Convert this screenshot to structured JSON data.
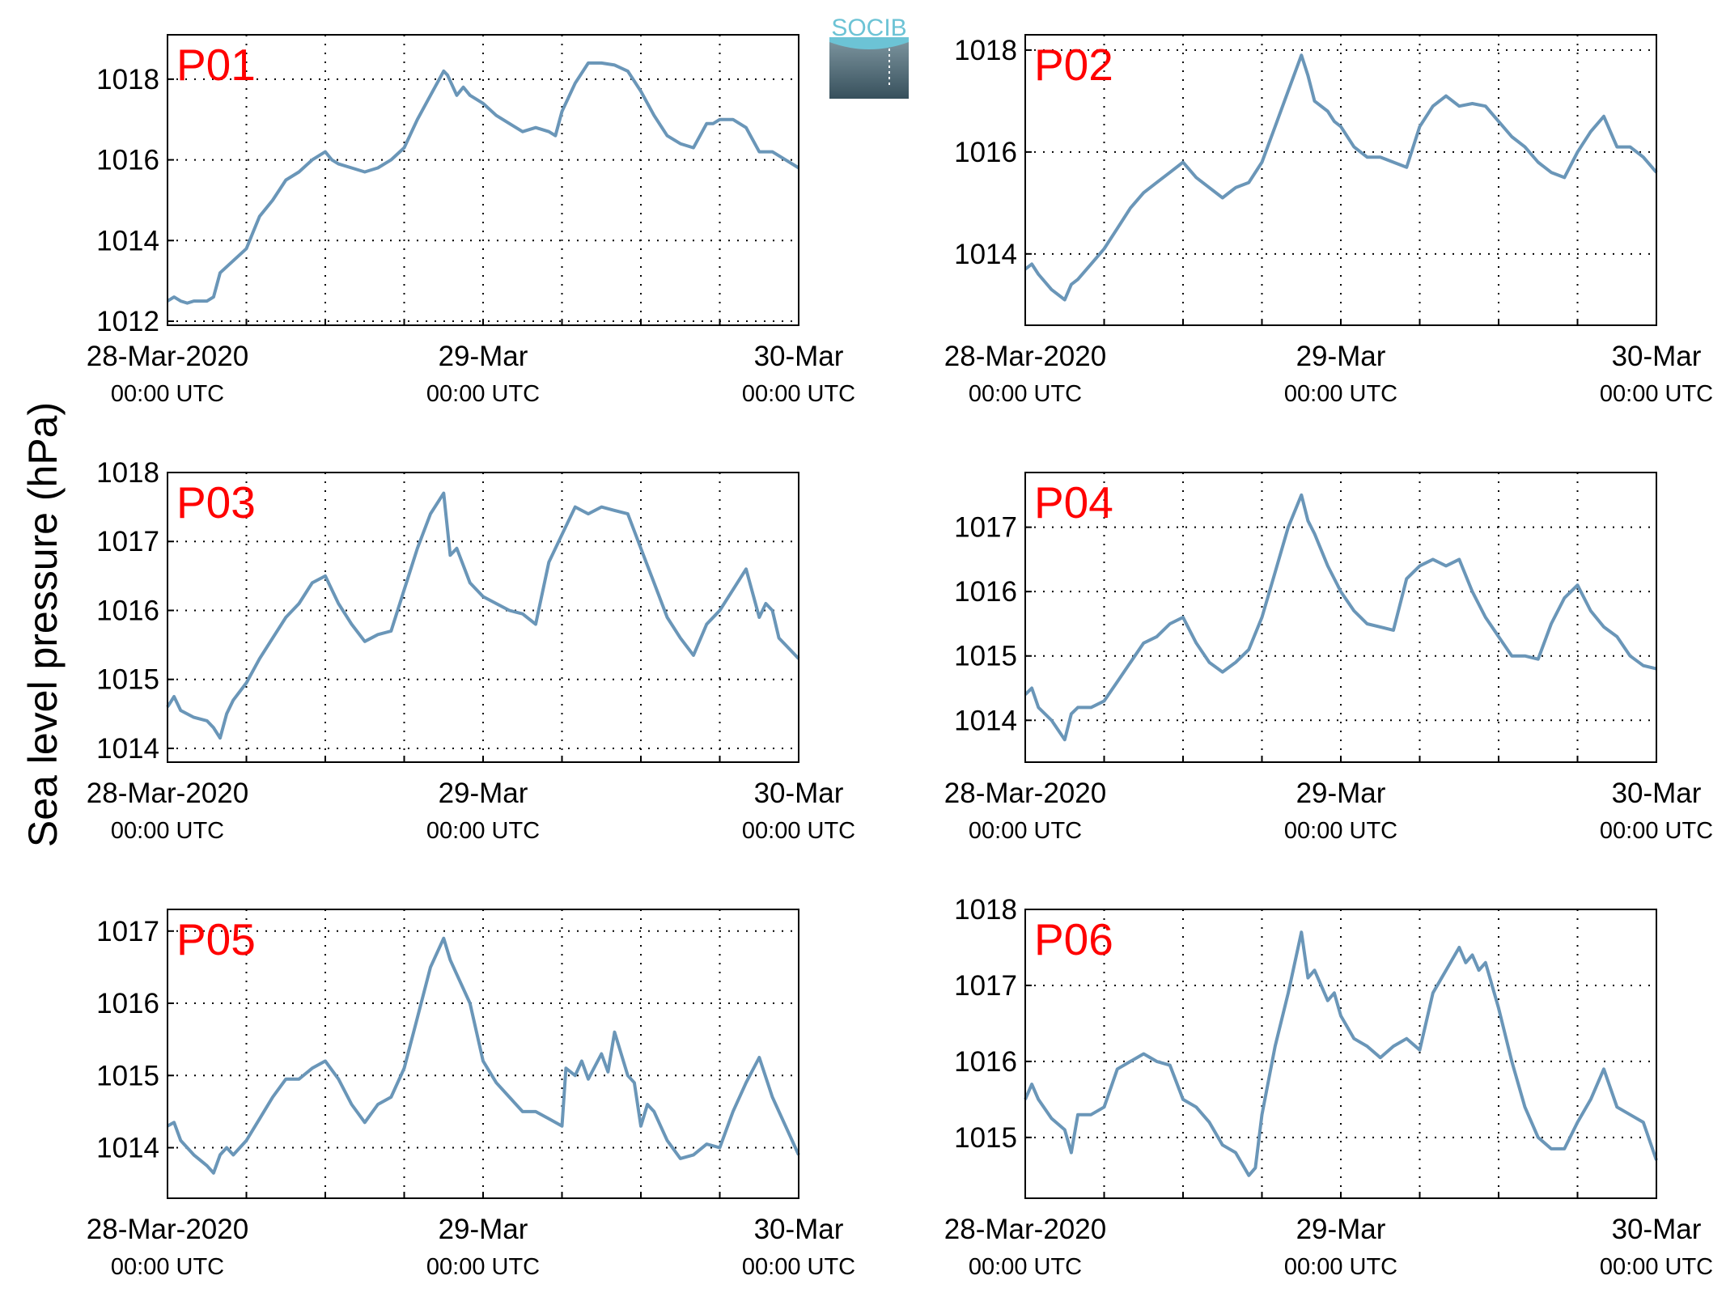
{
  "ylabel": "Sea level pressure (hPa)",
  "logo": {
    "text": "SOCIB"
  },
  "colors": {
    "line": "#6a96b8",
    "label": "#ff0000",
    "axis": "#000000",
    "grid": "#000000",
    "logo_top": "#6cc3d5",
    "logo_bottom": "#37505c"
  },
  "x_ticks": [
    {
      "main": "28-Mar-2020",
      "sub": "00:00 UTC"
    },
    {
      "main": "29-Mar",
      "sub": "00:00 UTC"
    },
    {
      "main": "30-Mar",
      "sub": "00:00 UTC"
    }
  ],
  "chart_data": [
    {
      "type": "line",
      "title": "P01",
      "xlim_hours": [
        0,
        48
      ],
      "ylim": [
        1011.9,
        1019.1
      ],
      "yticks": [
        "1012",
        "1014",
        "1016",
        "1018"
      ],
      "ytick_values": [
        1012,
        1014,
        1016,
        1018
      ],
      "x_grid_hours": [
        6,
        12,
        18,
        24,
        30,
        36,
        42
      ],
      "series": [
        {
          "x": [
            0,
            0.5,
            1,
            1.5,
            2,
            3,
            3.5,
            4,
            5,
            6,
            6.5,
            7,
            8,
            9,
            10,
            11,
            12,
            12.5,
            13,
            14,
            15,
            16,
            17,
            18,
            19,
            20,
            21,
            21.3,
            22,
            22.5,
            23,
            23.5,
            24,
            25,
            26,
            27,
            28,
            29,
            29.5,
            30,
            31,
            32,
            33,
            34,
            35,
            36,
            37,
            38,
            39,
            40,
            41,
            41.5,
            42,
            43,
            44,
            45,
            45.5,
            46,
            47,
            48
          ],
          "y": [
            1012.5,
            1012.6,
            1012.5,
            1012.45,
            1012.5,
            1012.5,
            1012.6,
            1013.2,
            1013.5,
            1013.8,
            1014.2,
            1014.6,
            1015.0,
            1015.5,
            1015.7,
            1016.0,
            1016.2,
            1016.0,
            1015.9,
            1015.8,
            1015.7,
            1015.8,
            1016.0,
            1016.3,
            1017.0,
            1017.6,
            1018.2,
            1018.1,
            1017.6,
            1017.8,
            1017.6,
            1017.5,
            1017.4,
            1017.1,
            1016.9,
            1016.7,
            1016.8,
            1016.7,
            1016.6,
            1017.2,
            1017.9,
            1018.4,
            1018.4,
            1018.35,
            1018.2,
            1017.7,
            1017.1,
            1016.6,
            1016.4,
            1016.3,
            1016.9,
            1016.9,
            1017.0,
            1017.0,
            1016.8,
            1016.2,
            1016.2,
            1016.2,
            1016.0,
            1015.8
          ]
        }
      ]
    },
    {
      "type": "line",
      "title": "P02",
      "xlim_hours": [
        0,
        48
      ],
      "ylim": [
        1012.6,
        1018.3
      ],
      "yticks": [
        "1014",
        "1016",
        "1018"
      ],
      "ytick_values": [
        1014,
        1016,
        1018
      ],
      "x_grid_hours": [
        6,
        12,
        18,
        24,
        30,
        36,
        42
      ],
      "series": [
        {
          "x": [
            0,
            0.5,
            1,
            2,
            3,
            3.5,
            4,
            5,
            6,
            7,
            8,
            9,
            10,
            11,
            12,
            13,
            14,
            15,
            16,
            17,
            18,
            19,
            20,
            21,
            21.5,
            22,
            23,
            23.5,
            24,
            25,
            26,
            27,
            28,
            29,
            30,
            31,
            32,
            33,
            34,
            35,
            36,
            37,
            38,
            39,
            40,
            41,
            42,
            43,
            44,
            45,
            46,
            47,
            48
          ],
          "y": [
            1013.7,
            1013.8,
            1013.6,
            1013.3,
            1013.1,
            1013.4,
            1013.5,
            1013.8,
            1014.1,
            1014.5,
            1014.9,
            1015.2,
            1015.4,
            1015.6,
            1015.8,
            1015.5,
            1015.3,
            1015.1,
            1015.3,
            1015.4,
            1015.8,
            1016.5,
            1017.2,
            1017.9,
            1017.5,
            1017.0,
            1016.8,
            1016.6,
            1016.5,
            1016.1,
            1015.9,
            1015.9,
            1015.8,
            1015.7,
            1016.5,
            1016.9,
            1017.1,
            1016.9,
            1016.95,
            1016.9,
            1016.6,
            1016.3,
            1016.1,
            1015.8,
            1015.6,
            1015.5,
            1016.0,
            1016.4,
            1016.7,
            1016.1,
            1016.1,
            1015.9,
            1015.6
          ]
        }
      ]
    },
    {
      "type": "line",
      "title": "P03",
      "xlim_hours": [
        0,
        48
      ],
      "ylim": [
        1013.8,
        1018.0
      ],
      "yticks": [
        "1014",
        "1015",
        "1016",
        "1017",
        "1018"
      ],
      "ytick_values": [
        1014,
        1015,
        1016,
        1017,
        1018
      ],
      "x_grid_hours": [
        6,
        12,
        18,
        24,
        30,
        36,
        42
      ],
      "series": [
        {
          "x": [
            0,
            0.5,
            1,
            2,
            3,
            3.5,
            4,
            4.5,
            5,
            6,
            7,
            8,
            9,
            10,
            11,
            12,
            13,
            14,
            15,
            16,
            17,
            18,
            19,
            20,
            21,
            21.5,
            22,
            23,
            23.5,
            24,
            25,
            26,
            27,
            28,
            29,
            30,
            31,
            32,
            33,
            34,
            35,
            36,
            37,
            38,
            39,
            40,
            41,
            42,
            43,
            44,
            45,
            45.5,
            46,
            46.5,
            47,
            48
          ],
          "y": [
            1014.6,
            1014.75,
            1014.55,
            1014.45,
            1014.4,
            1014.3,
            1014.15,
            1014.5,
            1014.7,
            1014.95,
            1015.3,
            1015.6,
            1015.9,
            1016.1,
            1016.4,
            1016.5,
            1016.1,
            1015.8,
            1015.55,
            1015.65,
            1015.7,
            1016.3,
            1016.9,
            1017.4,
            1017.7,
            1016.8,
            1016.9,
            1016.4,
            1016.3,
            1016.2,
            1016.1,
            1016.0,
            1015.95,
            1015.8,
            1016.7,
            1017.1,
            1017.5,
            1017.4,
            1017.5,
            1017.45,
            1017.4,
            1016.9,
            1016.4,
            1015.9,
            1015.6,
            1015.35,
            1015.8,
            1016.0,
            1016.3,
            1016.6,
            1015.9,
            1016.1,
            1016.0,
            1015.6,
            1015.5,
            1015.3
          ]
        }
      ]
    },
    {
      "type": "line",
      "title": "P04",
      "xlim_hours": [
        0,
        48
      ],
      "ylim": [
        1013.35,
        1017.85
      ],
      "yticks": [
        "1014",
        "1015",
        "1016",
        "1017"
      ],
      "ytick_values": [
        1014,
        1015,
        1016,
        1017
      ],
      "x_grid_hours": [
        6,
        12,
        18,
        24,
        30,
        36,
        42
      ],
      "series": [
        {
          "x": [
            0,
            0.5,
            1,
            2,
            3,
            3.5,
            4,
            5,
            6,
            7,
            8,
            9,
            10,
            11,
            12,
            13,
            14,
            15,
            16,
            17,
            18,
            19,
            20,
            21,
            21.5,
            22,
            23,
            24,
            25,
            26,
            27,
            28,
            29,
            30,
            31,
            32,
            33,
            34,
            35,
            36,
            37,
            38,
            39,
            40,
            41,
            42,
            43,
            44,
            45,
            46,
            47,
            48
          ],
          "y": [
            1014.4,
            1014.5,
            1014.2,
            1014.0,
            1013.7,
            1014.1,
            1014.2,
            1014.2,
            1014.3,
            1014.6,
            1014.9,
            1015.2,
            1015.3,
            1015.5,
            1015.6,
            1015.2,
            1014.9,
            1014.75,
            1014.9,
            1015.1,
            1015.6,
            1016.3,
            1017.0,
            1017.5,
            1017.1,
            1016.9,
            1016.4,
            1016.0,
            1015.7,
            1015.5,
            1015.45,
            1015.4,
            1016.2,
            1016.4,
            1016.5,
            1016.4,
            1016.5,
            1016.0,
            1015.6,
            1015.3,
            1015.0,
            1015.0,
            1014.95,
            1015.5,
            1015.9,
            1016.1,
            1015.7,
            1015.45,
            1015.3,
            1015.0,
            1014.85,
            1014.8
          ]
        }
      ]
    },
    {
      "type": "line",
      "title": "P05",
      "xlim_hours": [
        0,
        48
      ],
      "ylim": [
        1013.3,
        1017.3
      ],
      "yticks": [
        "1014",
        "1015",
        "1016",
        "1017"
      ],
      "ytick_values": [
        1014,
        1015,
        1016,
        1017
      ],
      "x_grid_hours": [
        6,
        12,
        18,
        24,
        30,
        36,
        42
      ],
      "series": [
        {
          "x": [
            0,
            0.5,
            1,
            2,
            3,
            3.5,
            4,
            4.5,
            5,
            6,
            7,
            8,
            9,
            10,
            11,
            12,
            13,
            14,
            15,
            16,
            17,
            18,
            19,
            20,
            21,
            21.5,
            22,
            23,
            23.5,
            24,
            25,
            26,
            27,
            28,
            29,
            30,
            30.3,
            31,
            31.5,
            32,
            33,
            33.5,
            34,
            35,
            35.5,
            36,
            36.5,
            37,
            38,
            39,
            40,
            41,
            42,
            43,
            44,
            45,
            46,
            47,
            48
          ],
          "y": [
            1014.3,
            1014.35,
            1014.1,
            1013.9,
            1013.75,
            1013.65,
            1013.9,
            1014.0,
            1013.9,
            1014.1,
            1014.4,
            1014.7,
            1014.95,
            1014.95,
            1015.1,
            1015.2,
            1014.95,
            1014.6,
            1014.35,
            1014.6,
            1014.7,
            1015.1,
            1015.8,
            1016.5,
            1016.9,
            1016.6,
            1016.4,
            1016.0,
            1015.6,
            1015.2,
            1014.9,
            1014.7,
            1014.5,
            1014.5,
            1014.4,
            1014.3,
            1015.1,
            1015.0,
            1015.2,
            1014.95,
            1015.3,
            1015.05,
            1015.6,
            1015.0,
            1014.9,
            1014.3,
            1014.6,
            1014.5,
            1014.1,
            1013.85,
            1013.9,
            1014.05,
            1014.0,
            1014.5,
            1014.9,
            1015.25,
            1014.7,
            1014.3,
            1013.9
          ]
        }
      ]
    },
    {
      "type": "line",
      "title": "P06",
      "xlim_hours": [
        0,
        48
      ],
      "ylim": [
        1014.2,
        1018.0
      ],
      "yticks": [
        "1015",
        "1016",
        "1017",
        "1018"
      ],
      "ytick_values": [
        1015,
        1016,
        1017,
        1018
      ],
      "x_grid_hours": [
        6,
        12,
        18,
        24,
        30,
        36,
        42
      ],
      "series": [
        {
          "x": [
            0,
            0.5,
            1,
            2,
            3,
            3.5,
            4,
            5,
            6,
            7,
            8,
            9,
            10,
            11,
            12,
            13,
            14,
            15,
            16,
            17,
            17.5,
            18,
            19,
            20,
            21,
            21.5,
            22,
            23,
            23.5,
            24,
            25,
            26,
            27,
            28,
            29,
            30,
            31,
            32,
            33,
            33.5,
            34,
            34.5,
            35,
            36,
            37,
            38,
            39,
            40,
            41,
            42,
            43,
            44,
            45,
            46,
            47,
            48
          ],
          "y": [
            1015.5,
            1015.7,
            1015.5,
            1015.25,
            1015.1,
            1014.8,
            1015.3,
            1015.3,
            1015.4,
            1015.9,
            1016.0,
            1016.1,
            1016.0,
            1015.95,
            1015.5,
            1015.4,
            1015.2,
            1014.9,
            1014.8,
            1014.5,
            1014.6,
            1015.3,
            1016.2,
            1016.9,
            1017.7,
            1017.1,
            1017.2,
            1016.8,
            1016.9,
            1016.6,
            1016.3,
            1016.2,
            1016.05,
            1016.2,
            1016.3,
            1016.15,
            1016.9,
            1017.2,
            1017.5,
            1017.3,
            1017.4,
            1017.2,
            1017.3,
            1016.7,
            1016.0,
            1015.4,
            1015.0,
            1014.85,
            1014.85,
            1015.2,
            1015.5,
            1015.9,
            1015.4,
            1015.3,
            1015.2,
            1014.7
          ]
        }
      ]
    }
  ]
}
